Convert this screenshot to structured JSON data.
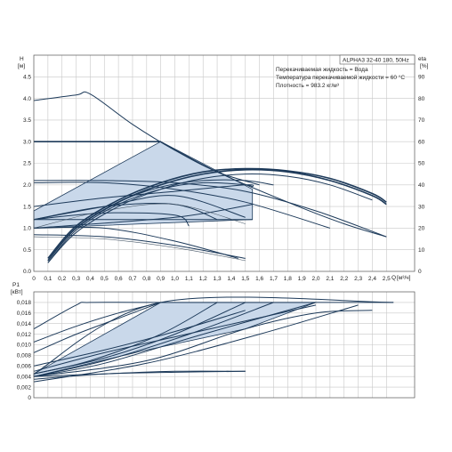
{
  "chart_data": [
    {
      "type": "line",
      "title": "ALPHA3 32-40 180, 50Hz",
      "annotations": [
        "Перекачиваемая жидкость = Вода",
        "Температура перекачиваемой жидкости = 60 °C",
        "Плотность = 983.2 кг/м³"
      ],
      "ylabel": "H",
      "yunit": "[м]",
      "y2label": "eta",
      "y2unit": "[%]",
      "xlabel": "Q",
      "xunit": "[м³/ч]",
      "xlim": [
        0,
        2.7
      ],
      "ylim": [
        0,
        5.0
      ],
      "y2lim": [
        0,
        100
      ],
      "xticks": [
        0,
        0.1,
        0.2,
        0.3,
        0.4,
        0.5,
        0.6,
        0.7,
        0.8,
        0.9,
        1.0,
        1.1,
        1.2,
        1.3,
        1.4,
        1.5,
        1.6,
        1.7,
        1.8,
        1.9,
        2.0,
        2.1,
        2.2,
        2.3,
        2.4,
        2.5
      ],
      "xticklabels": [
        "0",
        "0,1",
        "0,2",
        "0,3",
        "0,4",
        "0,5",
        "0,6",
        "0,7",
        "0,8",
        "0,9",
        "1,0",
        "1,1",
        "1,2",
        "1,3",
        "1,4",
        "1,5",
        "1,6",
        "1,7",
        "1,8",
        "1,9",
        "2,0",
        "2,1",
        "2,2",
        "2,3",
        "2,4",
        "2,5"
      ],
      "yticks": [
        0,
        0.5,
        1.0,
        1.5,
        2.0,
        2.5,
        3.0,
        3.5,
        4.0,
        4.5
      ],
      "yticklabels": [
        "0.0",
        "0.5",
        "1.0",
        "1.5",
        "2.0",
        "2.5",
        "3.0",
        "3.5",
        "4.0",
        "4.5"
      ],
      "y2ticks": [
        0,
        10,
        20,
        30,
        40,
        50,
        60,
        70,
        80,
        90
      ],
      "y2ticklabels": [
        "0",
        "10",
        "20",
        "30",
        "40",
        "50",
        "60",
        "70",
        "80",
        "90"
      ],
      "grid": true,
      "shaded_region": {
        "x": [
          0,
          0.9,
          1.55,
          1.55,
          0
        ],
        "y": [
          1.4,
          3.0,
          1.9,
          1.2,
          1.0
        ]
      },
      "series": [
        {
          "axis": "H",
          "style": "normal",
          "x": [
            0,
            0.3,
            0.4,
            0.7,
            1.0,
            1.3,
            1.6
          ],
          "y": [
            3.95,
            4.08,
            4.1,
            3.4,
            2.8,
            2.3,
            2.0
          ]
        },
        {
          "axis": "H",
          "style": "bold",
          "x": [
            0,
            0.9
          ],
          "y": [
            3.0,
            3.0
          ]
        },
        {
          "axis": "H",
          "style": "normal",
          "x": [
            0.9,
            1.3,
            1.8,
            2.2,
            2.5
          ],
          "y": [
            3.0,
            2.3,
            1.6,
            1.1,
            0.8
          ]
        },
        {
          "axis": "H",
          "style": "normal",
          "x": [
            0,
            0.5,
            1.0,
            1.5,
            2.0,
            2.5
          ],
          "y": [
            2.1,
            2.1,
            2.05,
            1.85,
            1.4,
            0.8
          ]
        },
        {
          "axis": "H",
          "style": "normal",
          "x": [
            0,
            0.5,
            1.0,
            1.5,
            2.1
          ],
          "y": [
            2.05,
            2.05,
            1.9,
            1.6,
            1.0
          ]
        },
        {
          "axis": "H",
          "style": "normal",
          "x": [
            0,
            0.5,
            1.0,
            1.5,
            1.55
          ],
          "y": [
            1.5,
            1.7,
            1.85,
            2.0,
            1.95
          ]
        },
        {
          "axis": "H",
          "style": "normal",
          "x": [
            0,
            1.55
          ],
          "y": [
            1.2,
            1.2
          ]
        },
        {
          "axis": "H",
          "style": "normal",
          "x": [
            0,
            1.0,
            1.55
          ],
          "y": [
            1.0,
            1.25,
            1.55
          ]
        },
        {
          "axis": "H",
          "style": "normal",
          "x": [
            0,
            0.5,
            1.0,
            1.3
          ],
          "y": [
            1.2,
            1.5,
            1.55,
            1.2
          ]
        },
        {
          "axis": "H",
          "style": "normal",
          "x": [
            0,
            0.5,
            1.0,
            1.5
          ],
          "y": [
            1.2,
            1.5,
            1.75,
            1.25
          ]
        },
        {
          "axis": "H",
          "style": "normal",
          "x": [
            0,
            0.5,
            1.0,
            1.1
          ],
          "y": [
            1.2,
            1.35,
            1.3,
            1.05
          ]
        },
        {
          "axis": "H",
          "style": "thin",
          "x": [
            0,
            0.5,
            1.0,
            1.5
          ],
          "y": [
            1.0,
            1.4,
            1.55,
            1.1
          ]
        },
        {
          "axis": "H",
          "style": "normal",
          "x": [
            0,
            0.5,
            1.0,
            1.45
          ],
          "y": [
            1.0,
            1.0,
            0.7,
            0.3
          ]
        },
        {
          "axis": "H",
          "style": "normal",
          "x": [
            0,
            0.5,
            1.0,
            1.5
          ],
          "y": [
            0.85,
            0.8,
            0.6,
            0.3
          ]
        },
        {
          "axis": "H",
          "style": "thin",
          "x": [
            0,
            0.5,
            1.0,
            1.5
          ],
          "y": [
            0.8,
            0.75,
            0.55,
            0.25
          ]
        },
        {
          "axis": "eta",
          "style": "bold",
          "x": [
            0.1,
            0.3,
            0.6,
            0.9,
            1.2,
            1.5,
            1.8,
            2.1,
            2.4,
            2.5
          ],
          "y": [
            5,
            20,
            32,
            40,
            45,
            47,
            46,
            42,
            35,
            31
          ]
        },
        {
          "axis": "eta",
          "style": "bold",
          "x": [
            0.1,
            0.3,
            0.6,
            0.9,
            1.2,
            1.5,
            1.8,
            2.1,
            2.4,
            2.5
          ],
          "y": [
            6,
            21,
            33,
            41,
            46,
            47.5,
            46.5,
            43,
            36,
            32
          ]
        },
        {
          "axis": "eta",
          "style": "normal",
          "x": [
            0.1,
            0.3,
            0.6,
            0.9,
            1.2,
            1.5,
            1.8,
            2.1,
            2.4
          ],
          "y": [
            4,
            18,
            30,
            38,
            43,
            45,
            44,
            40,
            33
          ]
        },
        {
          "axis": "eta",
          "style": "normal",
          "x": [
            0.1,
            0.3,
            0.6,
            0.9,
            1.2,
            1.5,
            1.55
          ],
          "y": [
            4,
            19,
            31,
            38,
            41,
            40,
            39
          ]
        },
        {
          "axis": "eta",
          "style": "normal",
          "x": [
            0.1,
            0.3,
            0.6,
            0.9,
            1.2,
            1.5,
            1.7
          ],
          "y": [
            5,
            20,
            32,
            39,
            42,
            42,
            40
          ]
        }
      ]
    },
    {
      "type": "line",
      "ylabel": "P1",
      "yunit": "[кВт]",
      "xlim": [
        0,
        2.7
      ],
      "ylim": [
        0,
        0.02
      ],
      "yticks": [
        0,
        0.002,
        0.004,
        0.006,
        0.008,
        0.01,
        0.012,
        0.014,
        0.016,
        0.018
      ],
      "yticklabels": [
        "0",
        "0,002",
        "0,004",
        "0,006",
        "0,008",
        "0,010",
        "0,012",
        "0,014",
        "0,016",
        "0,018"
      ],
      "grid": true,
      "shaded_region": {
        "x": [
          0,
          0.9,
          2.0,
          1.5,
          0.8,
          0
        ],
        "y": [
          0.0045,
          0.018,
          0.018,
          0.013,
          0.009,
          0.004
        ]
      },
      "series": [
        {
          "x": [
            0,
            0.3,
            0.4,
            0.9,
            2.55
          ],
          "y": [
            0.013,
            0.0175,
            0.018,
            0.018,
            0.018
          ]
        },
        {
          "x": [
            0,
            0.9,
            2.55
          ],
          "y": [
            0.0045,
            0.018,
            0.018
          ]
        },
        {
          "x": [
            0,
            0.4,
            0.9,
            1.3
          ],
          "y": [
            0.0045,
            0.007,
            0.012,
            0.018
          ]
        },
        {
          "x": [
            0,
            0.5,
            1.0,
            1.5
          ],
          "y": [
            0.0045,
            0.0075,
            0.012,
            0.018
          ]
        },
        {
          "x": [
            0,
            0.5,
            1.1,
            1.7
          ],
          "y": [
            0.004,
            0.007,
            0.012,
            0.018
          ]
        },
        {
          "x": [
            0,
            0.5,
            1.2,
            2.0
          ],
          "y": [
            0.004,
            0.0065,
            0.012,
            0.018
          ]
        },
        {
          "x": [
            0,
            0.8,
            1.5,
            2.0,
            2.4
          ],
          "y": [
            0.004,
            0.007,
            0.013,
            0.016,
            0.0165
          ]
        },
        {
          "x": [
            0,
            0.8,
            1.6,
            2.3
          ],
          "y": [
            0.003,
            0.0065,
            0.012,
            0.0175
          ]
        },
        {
          "x": [
            0,
            0.5,
            1.0,
            1.5
          ],
          "y": [
            0.004,
            0.0045,
            0.005,
            0.005
          ]
        },
        {
          "x": [
            0,
            0.5,
            1.0,
            1.5
          ],
          "y": [
            0.0035,
            0.0045,
            0.0048,
            0.005
          ]
        },
        {
          "x": [
            0,
            0.3,
            0.6,
            0.9
          ],
          "y": [
            0.0105,
            0.0135,
            0.016,
            0.018
          ]
        },
        {
          "x": [
            0,
            0.3,
            0.6,
            0.9
          ],
          "y": [
            0.0085,
            0.012,
            0.015,
            0.018
          ]
        },
        {
          "x": [
            0,
            0.5,
            1.0,
            1.5
          ],
          "y": [
            0.006,
            0.009,
            0.0125,
            0.0165
          ]
        },
        {
          "x": [
            0,
            0.5,
            1.0,
            1.5,
            2.0
          ],
          "y": [
            0.005,
            0.0085,
            0.0115,
            0.0145,
            0.0175
          ]
        }
      ]
    }
  ]
}
